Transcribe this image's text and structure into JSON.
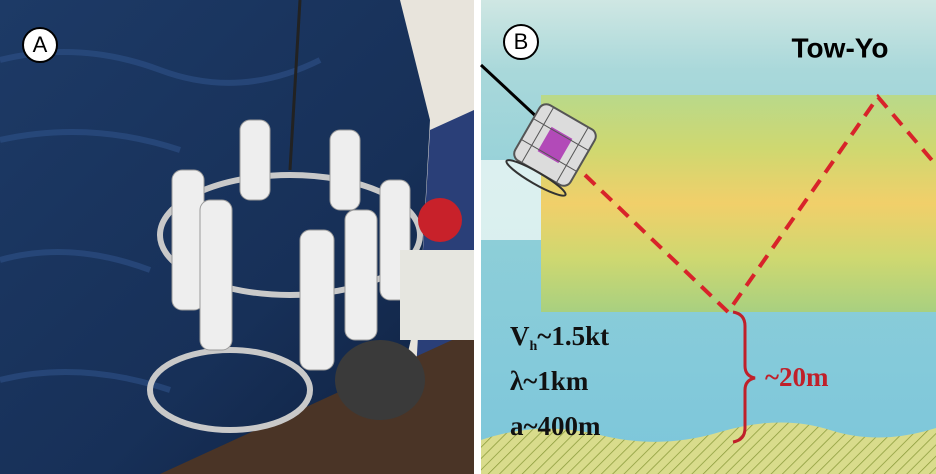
{
  "panel_a": {
    "label": "A"
  },
  "panel_b": {
    "label": "B",
    "title": "Tow-Yo",
    "velocity": {
      "symbol": "V",
      "subscript": "h",
      "value": "~1.5kt"
    },
    "wavelength": "λ~1km",
    "amplitude": "a~400m",
    "height_above_bottom": "~20m"
  }
}
